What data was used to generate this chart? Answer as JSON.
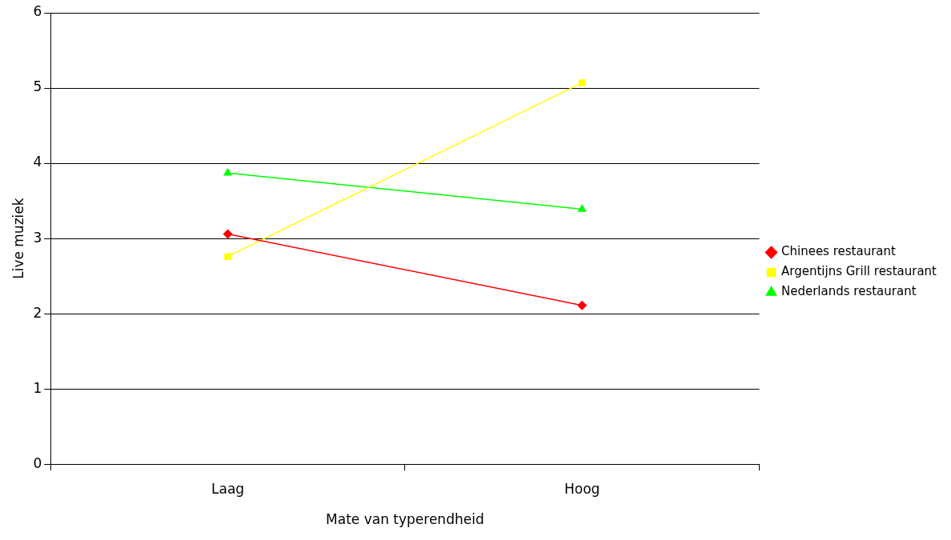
{
  "chart_data": {
    "type": "line",
    "xlabel": "Mate van typerendheid",
    "ylabel": "Live muziek",
    "categories": [
      "Laag",
      "Hoog"
    ],
    "series": [
      {
        "name": "Chinees restaurant",
        "color": "#ff0000",
        "marker": "diamond",
        "values": [
          3.06,
          2.11
        ]
      },
      {
        "name": "Argentijns Grill restaurant",
        "color": "#ffff00",
        "marker": "square",
        "values": [
          2.76,
          5.07
        ]
      },
      {
        "name": "Nederlands restaurant",
        "color": "#00ff00",
        "marker": "triangle",
        "values": [
          3.87,
          3.39
        ]
      }
    ],
    "ylim": [
      0,
      6
    ],
    "yticks": [
      0,
      1,
      2,
      3,
      4,
      5,
      6
    ],
    "grid": "y",
    "legend": "right",
    "line_style": "solid"
  }
}
